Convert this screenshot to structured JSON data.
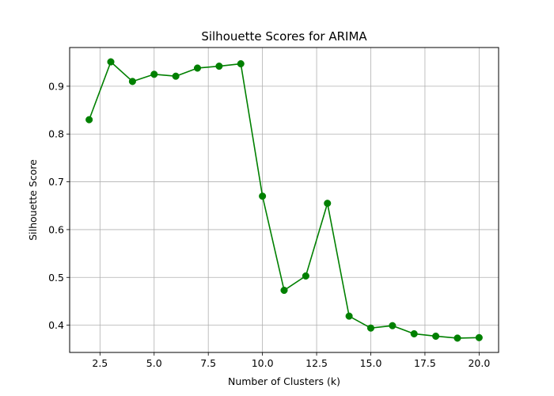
{
  "chart_data": {
    "type": "line",
    "title": "Silhouette Scores for ARIMA",
    "xlabel": "Number of Clusters (k)",
    "ylabel": "Silhouette Score",
    "xlim": [
      1.1,
      20.9
    ],
    "ylim": [
      0.343,
      0.981
    ],
    "xticks": [
      2.5,
      5.0,
      7.5,
      10.0,
      12.5,
      15.0,
      17.5,
      20.0
    ],
    "xtick_labels": [
      "2.5",
      "5.0",
      "7.5",
      "10.0",
      "12.5",
      "15.0",
      "17.5",
      "20.0"
    ],
    "yticks": [
      0.4,
      0.5,
      0.6,
      0.7,
      0.8,
      0.9
    ],
    "ytick_labels": [
      "0.4",
      "0.5",
      "0.6",
      "0.7",
      "0.8",
      "0.9"
    ],
    "grid": true,
    "color": "#008000",
    "marker": "circle",
    "x": [
      2,
      3,
      4,
      5,
      6,
      7,
      8,
      9,
      10,
      11,
      12,
      13,
      14,
      15,
      16,
      17,
      18,
      19,
      20
    ],
    "y": [
      0.83,
      0.951,
      0.91,
      0.925,
      0.921,
      0.938,
      0.942,
      0.947,
      0.67,
      0.473,
      0.503,
      0.655,
      0.419,
      0.394,
      0.399,
      0.382,
      0.377,
      0.373,
      0.374
    ]
  }
}
